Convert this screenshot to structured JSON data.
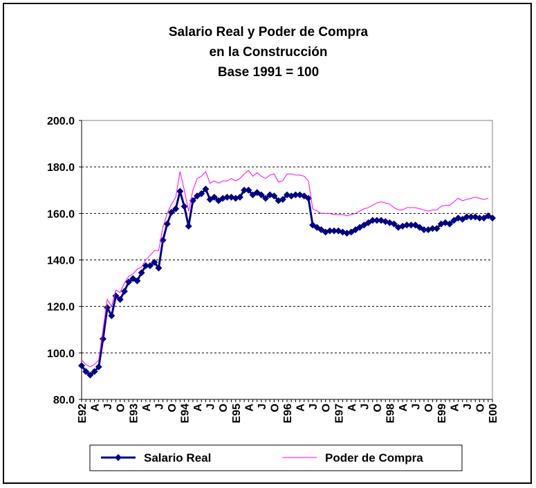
{
  "chart_data": {
    "type": "line",
    "title": [
      "Salario Real y Poder de Compra",
      "en la Construcción",
      "Base 1991 = 100"
    ],
    "categories": [
      "E92",
      null,
      null,
      "A",
      null,
      null,
      "J",
      null,
      null,
      "O",
      null,
      null,
      "E93",
      null,
      null,
      "A",
      null,
      null,
      "J",
      null,
      null,
      "O",
      null,
      null,
      "E94",
      null,
      null,
      "A",
      null,
      null,
      "J",
      null,
      null,
      "O",
      null,
      null,
      "E95",
      null,
      null,
      "A",
      null,
      null,
      "J",
      null,
      null,
      "O",
      null,
      null,
      "E96",
      null,
      null,
      "A",
      null,
      null,
      "J",
      null,
      null,
      "O",
      null,
      null,
      "E97",
      null,
      null,
      "A",
      null,
      null,
      "J",
      null,
      null,
      "O",
      null,
      null,
      "E98",
      null,
      null,
      "A",
      null,
      null,
      "J",
      null,
      null,
      "O",
      null,
      null,
      "E99",
      null,
      null,
      "A",
      null,
      null,
      "J",
      null,
      null,
      "O",
      null,
      null,
      "E00"
    ],
    "series": [
      {
        "name": "Salario Real",
        "color": "#000080",
        "marker": "diamond",
        "values": [
          94.5,
          92,
          90.5,
          92,
          94,
          106,
          119.5,
          116,
          124.5,
          123,
          126.5,
          130.5,
          132,
          131,
          134.5,
          137.5,
          137.5,
          139,
          136.5,
          148.5,
          155.5,
          160.5,
          162,
          169.5,
          163,
          154.5,
          165.5,
          167.5,
          168.5,
          170.5,
          166,
          167,
          165.5,
          166.5,
          167,
          167,
          166.5,
          167,
          170,
          170,
          168,
          169,
          168,
          166.5,
          168,
          167.5,
          165.5,
          166,
          168,
          167.5,
          168,
          168,
          167.5,
          166.5,
          155,
          154,
          153,
          152,
          152.5,
          152.5,
          152.5,
          152,
          151.5,
          152,
          153,
          154,
          155,
          156,
          157,
          157,
          157,
          156.5,
          156,
          155.5,
          154,
          154.5,
          155,
          155,
          155,
          154,
          153,
          153,
          153.5,
          153.5,
          155.5,
          156,
          155.5,
          157,
          158,
          157.5,
          158.5,
          158.5,
          158.5,
          158,
          158,
          159,
          158
        ]
      },
      {
        "name": "Poder de Compra",
        "color": "#ff00ff",
        "values": [
          97,
          95,
          94,
          95,
          97,
          110,
          123,
          120,
          127,
          126,
          130,
          133,
          134,
          136,
          137,
          140,
          142,
          144,
          144,
          154,
          160,
          164,
          167,
          178,
          170,
          161,
          170,
          175,
          176,
          178,
          173,
          174,
          173,
          174,
          174,
          175,
          174,
          175,
          177,
          178.5,
          176,
          177.5,
          176,
          175,
          176.5,
          177,
          173.5,
          174,
          177,
          177,
          176.5,
          176.5,
          176,
          174,
          162,
          161,
          160,
          160,
          160,
          159.5,
          159.5,
          159.5,
          159,
          159.5,
          160,
          161,
          162,
          162.5,
          163.5,
          164.5,
          165,
          164.5,
          164,
          162.5,
          161.5,
          161.5,
          162.5,
          162.5,
          162.5,
          162,
          161.5,
          161,
          161.5,
          161.5,
          163,
          163.5,
          163.5,
          165,
          166.5,
          165.5,
          166,
          166.5,
          167,
          166.5,
          166,
          166.5,
          null
        ]
      }
    ],
    "ylim": [
      80,
      200
    ],
    "yticks": [
      {
        "value": 80,
        "label": "80.0"
      },
      {
        "value": 100,
        "label": "100.0"
      },
      {
        "value": 120,
        "label": "120.0"
      },
      {
        "value": 140,
        "label": "140.0"
      },
      {
        "value": 160,
        "label": "160.0"
      },
      {
        "value": 180,
        "label": "180.0"
      },
      {
        "value": 200,
        "label": "200.0"
      }
    ],
    "grid": true
  }
}
